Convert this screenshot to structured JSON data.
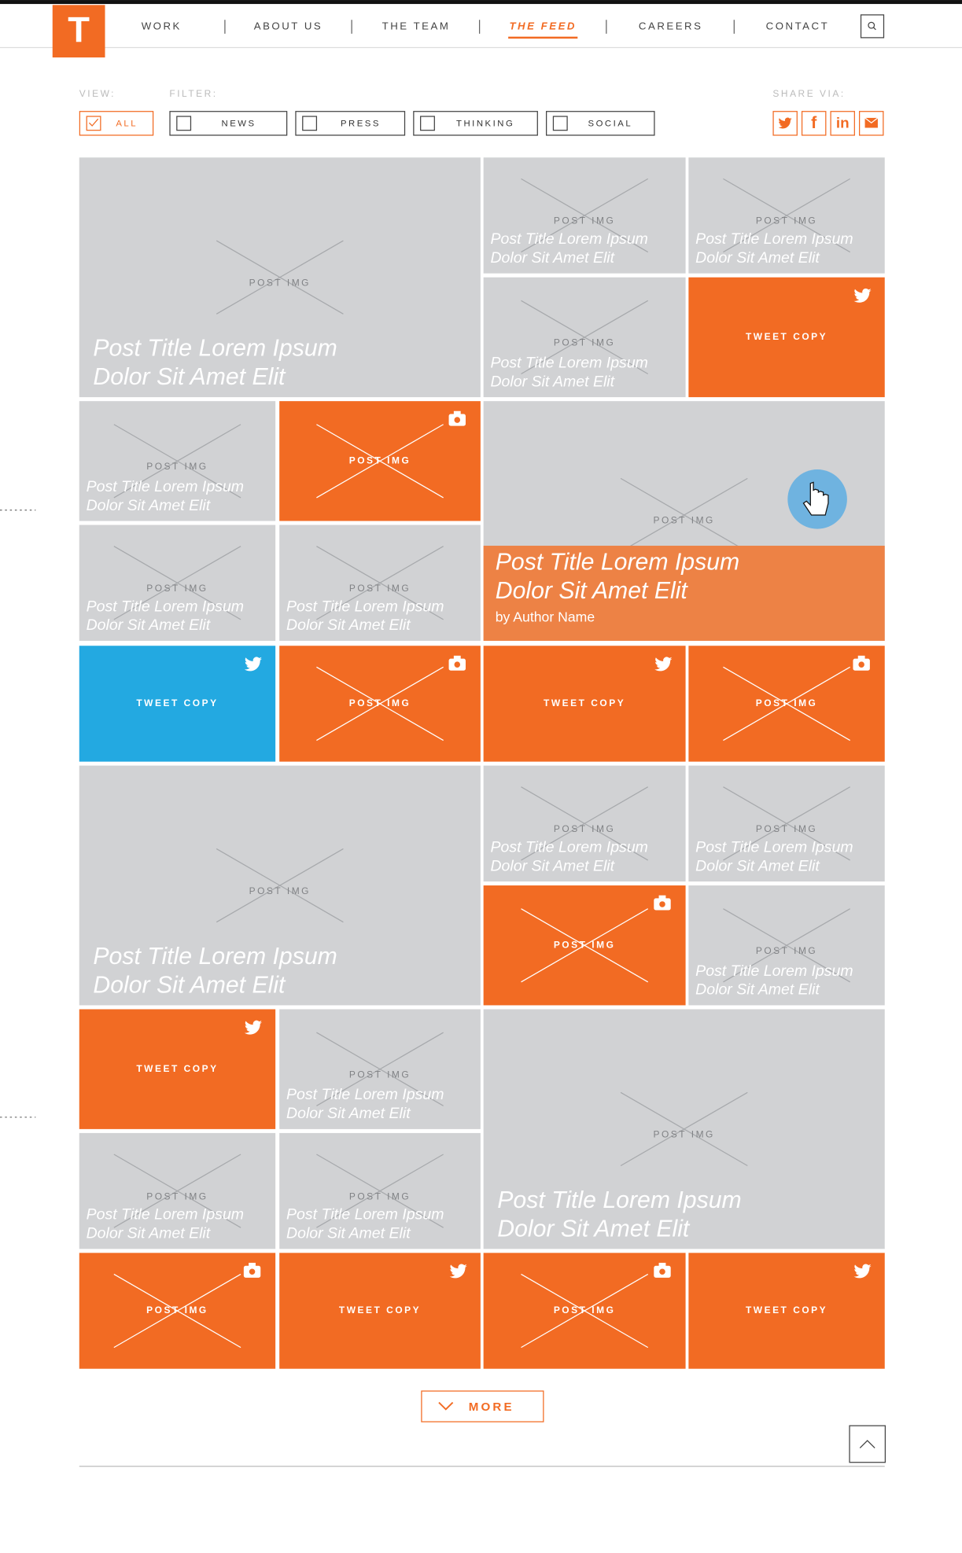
{
  "nav": {
    "logo": "T",
    "items": [
      "WORK",
      "ABOUT US",
      "THE TEAM",
      "THE FEED",
      "CAREERS",
      "CONTACT"
    ]
  },
  "filters": {
    "view_label": "VIEW:",
    "filter_label": "FILTER:",
    "view": "ALL",
    "options": [
      "NEWS",
      "PRESS",
      "THINKING",
      "SOCIAL"
    ]
  },
  "share": {
    "label": "SHARE VIA:",
    "icons": [
      "f",
      "in"
    ]
  },
  "tiles": [
    {
      "kind": "post",
      "color": "#d1d2d4",
      "label": "POST IMG",
      "title": [
        "Post Title Lorem Ipsum",
        "Dolor Sit Amet Elit"
      ]
    },
    {
      "kind": "post",
      "color": "#d1d2d4",
      "label": "POST IMG",
      "title": [
        "Post Title Lorem Ipsum",
        "Dolor Sit Amet Elit"
      ]
    },
    {
      "kind": "post",
      "color": "#d1d2d4",
      "label": "POST IMG",
      "title": [
        "Post Title Lorem Ipsum",
        "Dolor Sit Amet Elit"
      ]
    },
    {
      "kind": "post",
      "color": "#d1d2d4",
      "label": "POST IMG",
      "title": [
        "Post Title Lorem Ipsum",
        "Dolor Sit Amet Elit"
      ]
    },
    {
      "kind": "tweet",
      "color": "#f26b23",
      "label": "TWEET COPY"
    },
    {
      "kind": "post",
      "color": "#d1d2d4",
      "label": "POST IMG",
      "title": [
        "Post Title Lorem Ipsum",
        "Dolor Sit Amet Elit"
      ]
    },
    {
      "kind": "photo",
      "color": "#f26b23",
      "label": "POST IMG"
    },
    {
      "kind": "featured",
      "color": "#d1d2d4",
      "overlay": "#ed8245",
      "label": "POST IMG",
      "title": [
        "Post Title Lorem Ipsum",
        "Dolor Sit Amet Elit"
      ],
      "author": "by Author Name"
    },
    {
      "kind": "post",
      "color": "#d1d2d4",
      "label": "POST IMG",
      "title": [
        "Post Title Lorem Ipsum",
        "Dolor Sit Amet Elit"
      ]
    },
    {
      "kind": "post",
      "color": "#d1d2d4",
      "label": "POST IMG",
      "title": [
        "Post Title Lorem Ipsum",
        "Dolor Sit Amet Elit"
      ]
    },
    {
      "kind": "tweet",
      "color": "#23a9e1",
      "label": "TWEET COPY"
    },
    {
      "kind": "photo",
      "color": "#f26b23",
      "label": "POST IMG"
    },
    {
      "kind": "tweet",
      "color": "#f26b23",
      "label": "TWEET COPY"
    },
    {
      "kind": "photo",
      "color": "#f26b23",
      "label": "POST IMG"
    },
    {
      "kind": "post",
      "color": "#d1d2d4",
      "label": "POST IMG",
      "title": [
        "Post Title Lorem Ipsum",
        "Dolor Sit Amet Elit"
      ]
    },
    {
      "kind": "post",
      "color": "#d1d2d4",
      "label": "POST IMG",
      "title": [
        "Post Title Lorem Ipsum",
        "Dolor Sit Amet Elit"
      ]
    },
    {
      "kind": "post",
      "color": "#d1d2d4",
      "label": "POST IMG",
      "title": [
        "Post Title Lorem Ipsum",
        "Dolor Sit Amet Elit"
      ]
    },
    {
      "kind": "photo",
      "color": "#f26b23",
      "label": "POST IMG"
    },
    {
      "kind": "post",
      "color": "#d1d2d4",
      "label": "POST IMG",
      "title": [
        "Post Title Lorem Ipsum",
        "Dolor Sit Amet Elit"
      ]
    },
    {
      "kind": "tweet",
      "color": "#f26b23",
      "label": "TWEET COPY"
    },
    {
      "kind": "post",
      "color": "#d1d2d4",
      "label": "POST IMG",
      "title": [
        "Post Title Lorem Ipsum",
        "Dolor Sit Amet Elit"
      ]
    },
    {
      "kind": "post",
      "color": "#d1d2d4",
      "label": "POST IMG",
      "title": [
        "Post Title Lorem Ipsum",
        "Dolor Sit Amet Elit"
      ]
    },
    {
      "kind": "post",
      "color": "#d1d2d4",
      "label": "POST IMG",
      "title": [
        "Post Title Lorem Ipsum",
        "Dolor Sit Amet Elit"
      ]
    },
    {
      "kind": "post",
      "color": "#d1d2d4",
      "label": "POST IMG",
      "title": [
        "Post Title Lorem Ipsum",
        "Dolor Sit Amet Elit"
      ]
    },
    {
      "kind": "photo",
      "color": "#f26b23",
      "label": "POST IMG"
    },
    {
      "kind": "tweet",
      "color": "#f26b23",
      "label": "TWEET COPY"
    },
    {
      "kind": "photo",
      "color": "#f26b23",
      "label": "POST IMG"
    },
    {
      "kind": "tweet",
      "color": "#f26b23",
      "label": "TWEET COPY"
    }
  ],
  "more": "MORE"
}
